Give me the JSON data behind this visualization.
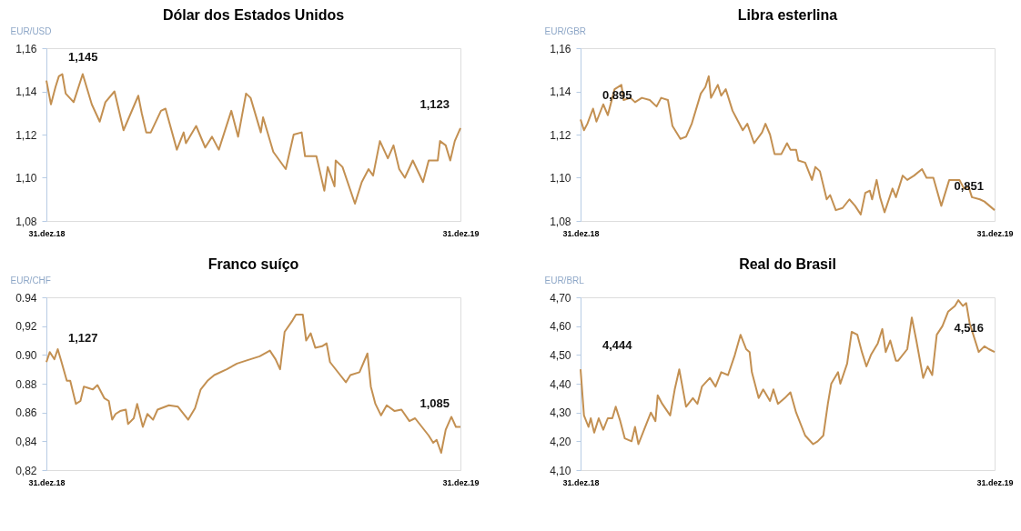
{
  "chart_data": [
    {
      "type": "line",
      "title": "Dólar dos Estados Unidos",
      "ylabel": "EUR/USD",
      "color": "#c39052",
      "xlim": [
        "2018-12-31",
        "2019-12-31"
      ],
      "xticks": [
        {
          "value": "2018-12-31",
          "label": "31.dez.18"
        },
        {
          "value": "2019-12-31",
          "label": "31.dez.19"
        }
      ],
      "ylim": [
        1.08,
        1.16
      ],
      "yticks": [
        {
          "value": 1.08,
          "label": "1,08"
        },
        {
          "value": 1.1,
          "label": "1,10"
        },
        {
          "value": 1.12,
          "label": "1,12"
        },
        {
          "value": 1.14,
          "label": "1,14"
        },
        {
          "value": 1.16,
          "label": "1,16"
        }
      ],
      "annotations": [
        "1,145",
        "1,123"
      ],
      "x": [
        "2018-12-31",
        "2019-01-04",
        "2019-01-08",
        "2019-01-11",
        "2019-01-14",
        "2019-01-17",
        "2019-01-24",
        "2019-02-01",
        "2019-02-09",
        "2019-02-16",
        "2019-02-21",
        "2019-03-01",
        "2019-03-09",
        "2019-03-22",
        "2019-03-25",
        "2019-03-29",
        "2019-04-02",
        "2019-04-11",
        "2019-04-15",
        "2019-04-25",
        "2019-05-01",
        "2019-05-03",
        "2019-05-12",
        "2019-05-20",
        "2019-05-26",
        "2019-06-01",
        "2019-06-12",
        "2019-06-18",
        "2019-06-25",
        "2019-06-29",
        "2019-07-08",
        "2019-07-10",
        "2019-07-19",
        "2019-07-30",
        "2019-08-06",
        "2019-08-13",
        "2019-08-16",
        "2019-08-26",
        "2019-09-02",
        "2019-09-05",
        "2019-09-11",
        "2019-09-12",
        "2019-09-18",
        "2019-09-29",
        "2019-10-05",
        "2019-10-11",
        "2019-10-15",
        "2019-10-21",
        "2019-10-28",
        "2019-11-02",
        "2019-11-07",
        "2019-11-12",
        "2019-11-19",
        "2019-11-28",
        "2019-12-03",
        "2019-12-11",
        "2019-12-13",
        "2019-12-18",
        "2019-12-22",
        "2019-12-26",
        "2019-12-31"
      ],
      "values": [
        1.145,
        1.134,
        1.142,
        1.147,
        1.148,
        1.139,
        1.135,
        1.148,
        1.134,
        1.126,
        1.135,
        1.14,
        1.122,
        1.138,
        1.13,
        1.121,
        1.121,
        1.131,
        1.132,
        1.113,
        1.121,
        1.116,
        1.124,
        1.114,
        1.119,
        1.113,
        1.131,
        1.119,
        1.139,
        1.137,
        1.121,
        1.128,
        1.112,
        1.104,
        1.12,
        1.121,
        1.11,
        1.11,
        1.094,
        1.105,
        1.096,
        1.108,
        1.105,
        1.088,
        1.098,
        1.104,
        1.101,
        1.117,
        1.109,
        1.115,
        1.104,
        1.1,
        1.108,
        1.098,
        1.108,
        1.108,
        1.117,
        1.115,
        1.108,
        1.117,
        1.123
      ]
    },
    {
      "type": "line",
      "title": "Libra esterlina",
      "ylabel": "EUR/GBR",
      "color": "#c39052",
      "xlim": [
        "2018-12-31",
        "2019-12-31"
      ],
      "xticks": [
        {
          "value": "2018-12-31",
          "label": "31.dez.18"
        },
        {
          "value": "2019-12-31",
          "label": "31.dez.19"
        }
      ],
      "ylim": [
        1.08,
        1.16
      ],
      "yticks": [
        {
          "value": 1.08,
          "label": "1,08"
        },
        {
          "value": 1.1,
          "label": "1,10"
        },
        {
          "value": 1.12,
          "label": "1,12"
        },
        {
          "value": 1.14,
          "label": "1,14"
        },
        {
          "value": 1.16,
          "label": "1,16"
        }
      ],
      "annotations": [
        "0,895",
        "0,851"
      ],
      "x": [
        "2018-12-31",
        "2019-01-03",
        "2019-01-06",
        "2019-01-11",
        "2019-01-14",
        "2019-01-20",
        "2019-01-24",
        "2019-01-30",
        "2019-02-05",
        "2019-02-07",
        "2019-02-13",
        "2019-02-17",
        "2019-02-23",
        "2019-03-02",
        "2019-03-08",
        "2019-03-12",
        "2019-03-18",
        "2019-03-22",
        "2019-03-29",
        "2019-04-03",
        "2019-04-08",
        "2019-04-16",
        "2019-04-20",
        "2019-04-23",
        "2019-04-25",
        "2019-05-01",
        "2019-05-04",
        "2019-05-08",
        "2019-05-14",
        "2019-05-17",
        "2019-05-23",
        "2019-05-27",
        "2019-06-02",
        "2019-06-09",
        "2019-06-12",
        "2019-06-16",
        "2019-06-20",
        "2019-06-26",
        "2019-07-01",
        "2019-07-04",
        "2019-07-09",
        "2019-07-11",
        "2019-07-17",
        "2019-07-23",
        "2019-07-26",
        "2019-07-30",
        "2019-08-05",
        "2019-08-08",
        "2019-08-13",
        "2019-08-19",
        "2019-08-25",
        "2019-08-30",
        "2019-09-04",
        "2019-09-08",
        "2019-09-12",
        "2019-09-14",
        "2019-09-18",
        "2019-09-21",
        "2019-09-25",
        "2019-10-02",
        "2019-10-05",
        "2019-10-11",
        "2019-10-15",
        "2019-10-21",
        "2019-10-28",
        "2019-11-01",
        "2019-11-07",
        "2019-11-14",
        "2019-11-21",
        "2019-11-30",
        "2019-12-04",
        "2019-12-08",
        "2019-12-11",
        "2019-12-18",
        "2019-12-22",
        "2019-12-31"
      ],
      "values": [
        1.127,
        1.122,
        1.125,
        1.132,
        1.126,
        1.134,
        1.129,
        1.141,
        1.143,
        1.136,
        1.137,
        1.135,
        1.137,
        1.136,
        1.133,
        1.137,
        1.136,
        1.124,
        1.118,
        1.119,
        1.125,
        1.139,
        1.142,
        1.147,
        1.137,
        1.143,
        1.138,
        1.141,
        1.131,
        1.128,
        1.122,
        1.125,
        1.116,
        1.121,
        1.125,
        1.12,
        1.111,
        1.111,
        1.116,
        1.113,
        1.113,
        1.108,
        1.107,
        1.099,
        1.105,
        1.103,
        1.09,
        1.092,
        1.085,
        1.086,
        1.09,
        1.087,
        1.083,
        1.093,
        1.094,
        1.09,
        1.099,
        1.091,
        1.084,
        1.095,
        1.091,
        1.101,
        1.099,
        1.101,
        1.104,
        1.1,
        1.1,
        1.087,
        1.099,
        1.099,
        1.095,
        1.096,
        1.091,
        1.09,
        1.089,
        1.085
      ]
    },
    {
      "type": "line",
      "title": "Franco suíço",
      "ylabel": "EUR/CHF",
      "color": "#c39052",
      "xlim": [
        "2018-12-31",
        "2019-12-31"
      ],
      "xticks": [
        {
          "value": "2018-12-31",
          "label": "31.dez.18"
        },
        {
          "value": "2019-12-31",
          "label": "31.dez.19"
        }
      ],
      "ylim": [
        0.82,
        0.94
      ],
      "yticks": [
        {
          "value": 0.82,
          "label": "0,82"
        },
        {
          "value": 0.84,
          "label": "0,84"
        },
        {
          "value": 0.86,
          "label": "0.86"
        },
        {
          "value": 0.88,
          "label": "0.88"
        },
        {
          "value": 0.9,
          "label": "0.90"
        },
        {
          "value": 0.92,
          "label": "0,92"
        },
        {
          "value": 0.94,
          "label": "0.94"
        }
      ],
      "annotations": [
        "1,127",
        "1,085"
      ],
      "x": [
        "2018-12-31",
        "2019-01-03",
        "2019-01-07",
        "2019-01-10",
        "2019-01-13",
        "2019-01-18",
        "2019-01-21",
        "2019-01-26",
        "2019-01-30",
        "2019-02-02",
        "2019-02-06",
        "2019-02-10",
        "2019-02-14",
        "2019-02-20",
        "2019-02-24",
        "2019-02-27",
        "2019-03-02",
        "2019-03-06",
        "2019-03-11",
        "2019-03-13",
        "2019-03-18",
        "2019-03-21",
        "2019-03-26",
        "2019-03-30",
        "2019-04-04",
        "2019-04-08",
        "2019-04-18",
        "2019-04-26",
        "2019-05-05",
        "2019-05-11",
        "2019-05-16",
        "2019-05-22",
        "2019-05-28",
        "2019-06-08",
        "2019-06-17",
        "2019-06-25",
        "2019-07-07",
        "2019-07-16",
        "2019-07-21",
        "2019-07-25",
        "2019-07-29",
        "2019-08-05",
        "2019-08-08",
        "2019-08-14",
        "2019-08-17",
        "2019-08-21",
        "2019-08-25",
        "2019-08-31",
        "2019-09-04",
        "2019-09-07",
        "2019-09-16",
        "2019-09-21",
        "2019-09-25",
        "2019-10-03",
        "2019-10-10",
        "2019-10-13",
        "2019-10-17",
        "2019-10-22",
        "2019-10-27",
        "2019-11-03",
        "2019-11-09",
        "2019-11-16",
        "2019-11-21",
        "2019-11-27",
        "2019-12-03",
        "2019-12-07",
        "2019-12-10",
        "2019-12-14",
        "2019-12-18",
        "2019-12-23",
        "2019-12-27",
        "2019-12-31"
      ],
      "values": [
        0.895,
        0.902,
        0.897,
        0.904,
        0.896,
        0.882,
        0.882,
        0.866,
        0.868,
        0.878,
        0.877,
        0.876,
        0.879,
        0.87,
        0.868,
        0.855,
        0.859,
        0.861,
        0.862,
        0.852,
        0.856,
        0.866,
        0.85,
        0.859,
        0.855,
        0.862,
        0.865,
        0.864,
        0.855,
        0.863,
        0.876,
        0.882,
        0.886,
        0.89,
        0.894,
        0.896,
        0.899,
        0.903,
        0.897,
        0.89,
        0.916,
        0.924,
        0.928,
        0.928,
        0.91,
        0.915,
        0.905,
        0.906,
        0.908,
        0.895,
        0.886,
        0.881,
        0.886,
        0.888,
        0.901,
        0.878,
        0.866,
        0.858,
        0.865,
        0.861,
        0.862,
        0.854,
        0.856,
        0.85,
        0.844,
        0.839,
        0.841,
        0.832,
        0.848,
        0.857,
        0.85,
        0.85
      ]
    },
    {
      "type": "line",
      "title": "Real do Brasil",
      "ylabel": "EUR/BRL",
      "color": "#c39052",
      "xlim": [
        "2018-12-31",
        "2019-12-31"
      ],
      "xticks": [
        {
          "value": "2018-12-31",
          "label": "31.dez.18"
        },
        {
          "value": "2019-12-31",
          "label": "31.dez.19"
        }
      ],
      "ylim": [
        4.1,
        4.7
      ],
      "yticks": [
        {
          "value": 4.1,
          "label": "4,10"
        },
        {
          "value": 4.2,
          "label": "4,20"
        },
        {
          "value": 4.3,
          "label": "4,30"
        },
        {
          "value": 4.4,
          "label": "4,40"
        },
        {
          "value": 4.5,
          "label": "4,50"
        },
        {
          "value": 4.6,
          "label": "4,60"
        },
        {
          "value": 4.7,
          "label": "4,70"
        }
      ],
      "annotations": [
        "4,444",
        "4,516"
      ],
      "x": [
        "2018-12-31",
        "2019-01-03",
        "2019-01-07",
        "2019-01-09",
        "2019-01-12",
        "2019-01-16",
        "2019-01-20",
        "2019-01-24",
        "2019-01-28",
        "2019-01-31",
        "2019-02-04",
        "2019-02-08",
        "2019-02-14",
        "2019-02-17",
        "2019-02-20",
        "2019-02-25",
        "2019-03-03",
        "2019-03-07",
        "2019-03-09",
        "2019-03-13",
        "2019-03-20",
        "2019-03-24",
        "2019-03-28",
        "2019-04-03",
        "2019-04-09",
        "2019-04-13",
        "2019-04-17",
        "2019-04-24",
        "2019-04-29",
        "2019-05-04",
        "2019-05-10",
        "2019-05-16",
        "2019-05-21",
        "2019-05-26",
        "2019-05-29",
        "2019-05-31",
        "2019-06-06",
        "2019-06-10",
        "2019-06-16",
        "2019-06-19",
        "2019-06-23",
        "2019-06-29",
        "2019-07-04",
        "2019-07-09",
        "2019-07-14",
        "2019-07-17",
        "2019-07-24",
        "2019-07-28",
        "2019-08-02",
        "2019-08-06",
        "2019-08-09",
        "2019-08-15",
        "2019-08-17",
        "2019-08-23",
        "2019-08-27",
        "2019-09-01",
        "2019-09-05",
        "2019-09-09",
        "2019-09-13",
        "2019-09-19",
        "2019-09-23",
        "2019-09-26",
        "2019-09-30",
        "2019-10-05",
        "2019-10-07",
        "2019-10-15",
        "2019-10-19",
        "2019-10-23",
        "2019-10-29",
        "2019-11-02",
        "2019-11-06",
        "2019-11-10",
        "2019-11-15",
        "2019-11-20",
        "2019-11-26",
        "2019-11-29",
        "2019-12-03",
        "2019-12-06",
        "2019-12-09",
        "2019-12-17",
        "2019-12-22",
        "2019-12-26",
        "2019-12-31"
      ],
      "values": [
        4.45,
        4.29,
        4.25,
        4.28,
        4.23,
        4.28,
        4.24,
        4.28,
        4.28,
        4.32,
        4.27,
        4.21,
        4.2,
        4.25,
        4.19,
        4.24,
        4.3,
        4.27,
        4.36,
        4.33,
        4.29,
        4.38,
        4.45,
        4.32,
        4.35,
        4.33,
        4.39,
        4.42,
        4.39,
        4.44,
        4.43,
        4.5,
        4.57,
        4.52,
        4.51,
        4.44,
        4.35,
        4.38,
        4.34,
        4.38,
        4.33,
        4.35,
        4.37,
        4.3,
        4.25,
        4.22,
        4.19,
        4.2,
        4.22,
        4.33,
        4.4,
        4.44,
        4.4,
        4.47,
        4.58,
        4.57,
        4.51,
        4.46,
        4.5,
        4.54,
        4.59,
        4.51,
        4.55,
        4.48,
        4.48,
        4.52,
        4.63,
        4.55,
        4.42,
        4.46,
        4.43,
        4.57,
        4.6,
        4.65,
        4.67,
        4.69,
        4.67,
        4.68,
        4.61,
        4.51,
        4.53,
        4.52,
        4.51
      ]
    }
  ]
}
